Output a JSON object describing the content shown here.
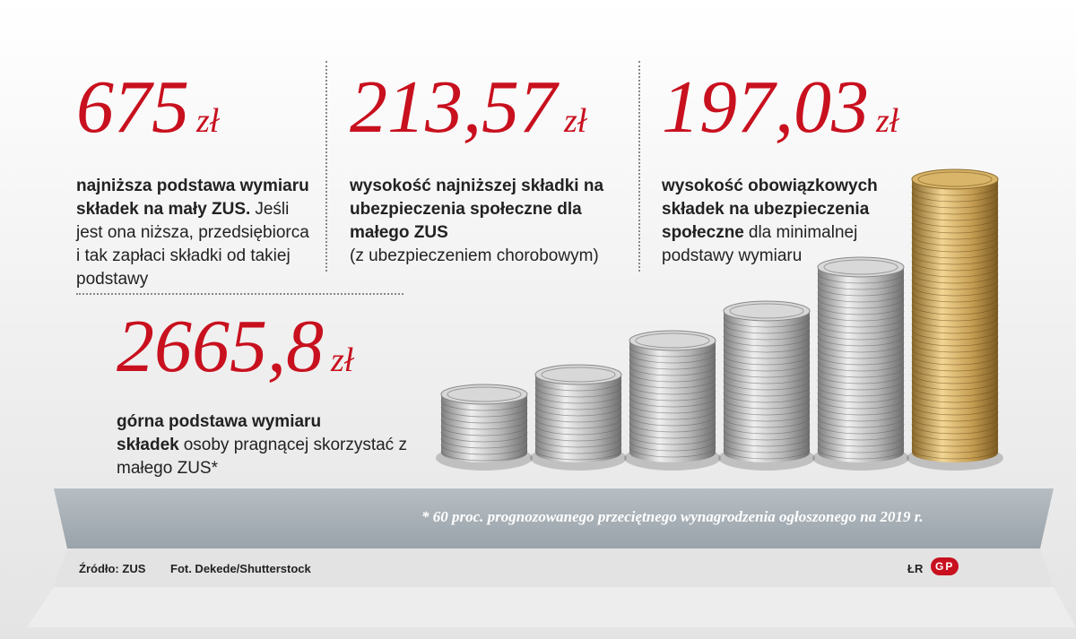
{
  "stats": [
    {
      "amount": "675",
      "unit": "zł",
      "bold": "najniższa podstawa wymiaru składek na mały ZUS.",
      "text": "Jeśli jest ona niższa, przedsiębiorca i tak zapłaci składki od takiej podstawy"
    },
    {
      "amount": "213,57",
      "unit": "zł",
      "bold": "wysokość najniższej składki na ubezpieczenia społeczne dla małego ZUS",
      "text": "(z ubezpieczeniem chorobowym)"
    },
    {
      "amount": "197,03",
      "unit": "zł",
      "bold": "wysokość obowiązkowych składek na ubezpieczenia społeczne",
      "text": "dla minimalnej podstawy wymiaru"
    },
    {
      "amount": "2665,8",
      "unit": "zł",
      "bold": "górna podstawa wymiaru składek",
      "text": "osoby pragnącej skorzystać z małego ZUS*"
    }
  ],
  "footnote": "* 60 proc. prognozowanego przeciętnego wynagrodzenia ogłoszonego na 2019 r.",
  "footer": {
    "source": "Źródło: ZUS",
    "photo": "Fot. Dekede/Shutterstock",
    "author": "ŁR",
    "logo": "GP"
  }
}
